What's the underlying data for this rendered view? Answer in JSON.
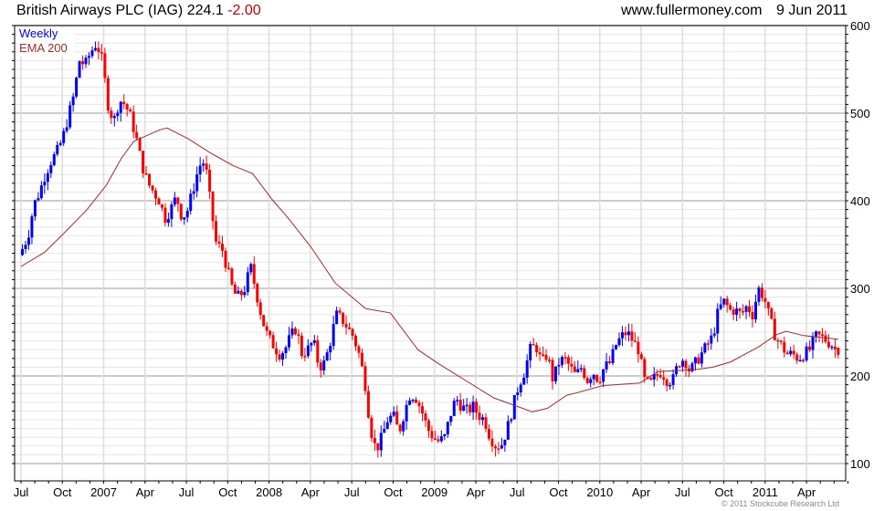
{
  "header": {
    "title": "British Airways PLC (IAG) 224.1",
    "change": "-2.00",
    "site": "www.fullermoney.com",
    "date": "9 Jun 2011"
  },
  "copyright": "© 2011 Stockcube Research Ltd",
  "colors": {
    "up": "#0000ff",
    "down": "#ff0000",
    "ema": "#a52a2a",
    "change": "#cc0000"
  },
  "chart_data": {
    "type": "candlestick",
    "title": "British Airways PLC (IAG) 224.1 -2.00",
    "legend": [
      {
        "label": "Weekly",
        "color": "#0000ff"
      },
      {
        "label": "EMA 200",
        "color": "#a52a2a"
      }
    ],
    "legend_position": "top-left",
    "ylim": [
      90,
      600
    ],
    "y_ticks": [
      100,
      200,
      300,
      400,
      500,
      600
    ],
    "x_range_months_since_jul_2006": [
      0,
      60.3
    ],
    "x_ticks": [
      {
        "label": "Jul",
        "month": 0
      },
      {
        "label": "Oct",
        "month": 3
      },
      {
        "label": "2007",
        "month": 6
      },
      {
        "label": "Apr",
        "month": 9
      },
      {
        "label": "Jul",
        "month": 12
      },
      {
        "label": "Oct",
        "month": 15
      },
      {
        "label": "2008",
        "month": 18
      },
      {
        "label": "Apr",
        "month": 21
      },
      {
        "label": "Jul",
        "month": 24
      },
      {
        "label": "Oct",
        "month": 27
      },
      {
        "label": "2009",
        "month": 30
      },
      {
        "label": "Apr",
        "month": 33
      },
      {
        "label": "Jul",
        "month": 36
      },
      {
        "label": "Oct",
        "month": 39
      },
      {
        "label": "2010",
        "month": 42
      },
      {
        "label": "Apr",
        "month": 45
      },
      {
        "label": "Jul",
        "month": 48
      },
      {
        "label": "Oct",
        "month": 51
      },
      {
        "label": "2011",
        "month": 54
      },
      {
        "label": "Apr",
        "month": 57
      }
    ],
    "weeks": 258,
    "data_start_month": 0.1,
    "data_end_month": 59.3,
    "last_close": 224.1,
    "close_keypoints": [
      345,
      360,
      395,
      410,
      430,
      445,
      455,
      470,
      495,
      520,
      560,
      555,
      570,
      580,
      560,
      510,
      490,
      515,
      510,
      495,
      470,
      440,
      420,
      410,
      400,
      380,
      390,
      405,
      380,
      390,
      415,
      440,
      445,
      395,
      350,
      345,
      320,
      295,
      290,
      300,
      325,
      295,
      265,
      245,
      235,
      225,
      230,
      245,
      255,
      225,
      230,
      240,
      210,
      215,
      240,
      270,
      265,
      255,
      245,
      225,
      195,
      140,
      115,
      130,
      150,
      155,
      135,
      160,
      180,
      175,
      160,
      140,
      130,
      125,
      130,
      155,
      175,
      165,
      160,
      165,
      155,
      150,
      130,
      120,
      122,
      140,
      165,
      190,
      205,
      230,
      235,
      215,
      225,
      195,
      215,
      220,
      210,
      200,
      210,
      195,
      205,
      195,
      210,
      215,
      235,
      245,
      250,
      240,
      230,
      195,
      190,
      200,
      205,
      195,
      195,
      215,
      220,
      205,
      215,
      225,
      235,
      245,
      275,
      285,
      275,
      275,
      270,
      280,
      270,
      300,
      290,
      265,
      245,
      235,
      225,
      225,
      220,
      225,
      230,
      245,
      245,
      240,
      235,
      224.1
    ],
    "ema200": [
      [
        0,
        325
      ],
      [
        1.7,
        341
      ],
      [
        3.0,
        361
      ],
      [
        4.8,
        390
      ],
      [
        6.2,
        418
      ],
      [
        7.3,
        449
      ],
      [
        8.2,
        468
      ],
      [
        10.1,
        481
      ],
      [
        10.6,
        483
      ],
      [
        12.1,
        471
      ],
      [
        13.7,
        455
      ],
      [
        15.4,
        440
      ],
      [
        16.8,
        431
      ],
      [
        18.3,
        400
      ],
      [
        19.4,
        380
      ],
      [
        21.0,
        348
      ],
      [
        22.8,
        306
      ],
      [
        25.0,
        277
      ],
      [
        26.8,
        272
      ],
      [
        28.8,
        230
      ],
      [
        30.3,
        214
      ],
      [
        34.3,
        175
      ],
      [
        37.1,
        159
      ],
      [
        38.2,
        163
      ],
      [
        39.6,
        178
      ],
      [
        40.4,
        181
      ],
      [
        42.2,
        189
      ],
      [
        44.9,
        192
      ],
      [
        46.2,
        205
      ],
      [
        48.8,
        207
      ],
      [
        50.2,
        210
      ],
      [
        51.5,
        216
      ],
      [
        53.5,
        233
      ],
      [
        54.8,
        247
      ],
      [
        55.5,
        251
      ],
      [
        56.8,
        246
      ],
      [
        58.1,
        244
      ],
      [
        59.3,
        242
      ]
    ]
  }
}
